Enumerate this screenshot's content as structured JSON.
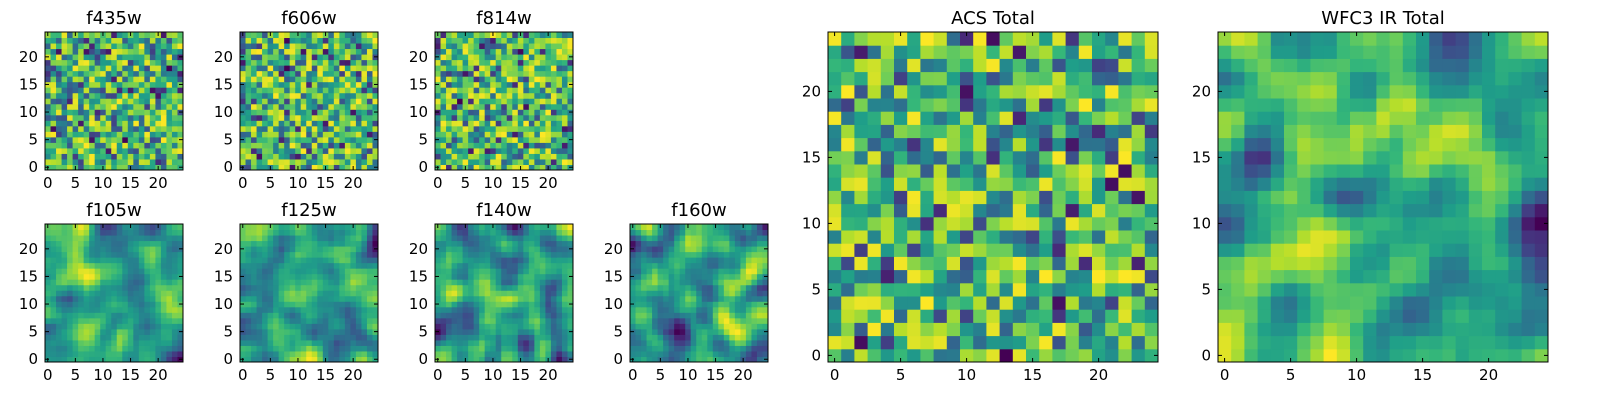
{
  "chart_data": [
    {
      "type": "heatmap",
      "title": "f435w",
      "grid_size": 25,
      "xticks": [
        "0",
        "5",
        "10",
        "15",
        "20"
      ],
      "yticks": [
        "0",
        "5",
        "10",
        "15",
        "20"
      ],
      "xlim": [
        -0.5,
        24.5
      ],
      "ylim": [
        -0.5,
        24.5
      ],
      "colormap": "viridis",
      "texture": "noise",
      "seed": 11
    },
    {
      "type": "heatmap",
      "title": "f606w",
      "grid_size": 25,
      "xticks": [
        "0",
        "5",
        "10",
        "15",
        "20"
      ],
      "yticks": [
        "0",
        "5",
        "10",
        "15",
        "20"
      ],
      "xlim": [
        -0.5,
        24.5
      ],
      "ylim": [
        -0.5,
        24.5
      ],
      "colormap": "viridis",
      "texture": "noise",
      "seed": 23
    },
    {
      "type": "heatmap",
      "title": "f814w",
      "grid_size": 25,
      "xticks": [
        "0",
        "5",
        "10",
        "15",
        "20"
      ],
      "yticks": [
        "0",
        "5",
        "10",
        "15",
        "20"
      ],
      "xlim": [
        -0.5,
        24.5
      ],
      "ylim": [
        -0.5,
        24.5
      ],
      "colormap": "viridis",
      "texture": "noise",
      "seed": 37
    },
    {
      "type": "heatmap",
      "title": "f105w",
      "grid_size": 25,
      "xticks": [
        "0",
        "5",
        "10",
        "15",
        "20"
      ],
      "yticks": [
        "0",
        "5",
        "10",
        "15",
        "20"
      ],
      "xlim": [
        -0.5,
        24.5
      ],
      "ylim": [
        -0.5,
        24.5
      ],
      "colormap": "viridis",
      "texture": "smooth",
      "seed": 41
    },
    {
      "type": "heatmap",
      "title": "f125w",
      "grid_size": 25,
      "xticks": [
        "0",
        "5",
        "10",
        "15",
        "20"
      ],
      "yticks": [
        "0",
        "5",
        "10",
        "15",
        "20"
      ],
      "xlim": [
        -0.5,
        24.5
      ],
      "ylim": [
        -0.5,
        24.5
      ],
      "colormap": "viridis",
      "texture": "smooth",
      "seed": 53
    },
    {
      "type": "heatmap",
      "title": "f140w",
      "grid_size": 25,
      "xticks": [
        "0",
        "5",
        "10",
        "15",
        "20"
      ],
      "yticks": [
        "0",
        "5",
        "10",
        "15",
        "20"
      ],
      "xlim": [
        -0.5,
        24.5
      ],
      "ylim": [
        -0.5,
        24.5
      ],
      "colormap": "viridis",
      "texture": "smooth",
      "seed": 67
    },
    {
      "type": "heatmap",
      "title": "f160w",
      "grid_size": 25,
      "xticks": [
        "0",
        "5",
        "10",
        "15",
        "20"
      ],
      "yticks": [
        "0",
        "5",
        "10",
        "15",
        "20"
      ],
      "xlim": [
        -0.5,
        24.5
      ],
      "ylim": [
        -0.5,
        24.5
      ],
      "colormap": "viridis",
      "texture": "smooth",
      "seed": 79
    },
    {
      "type": "heatmap",
      "title": "ACS Total",
      "grid_size": 25,
      "xticks": [
        "0",
        "5",
        "10",
        "15",
        "20"
      ],
      "yticks": [
        "0",
        "5",
        "10",
        "15",
        "20"
      ],
      "xlim": [
        -0.5,
        24.5
      ],
      "ylim": [
        -0.5,
        24.5
      ],
      "colormap": "viridis",
      "texture": "noise",
      "seed": 97
    },
    {
      "type": "heatmap",
      "title": "WFC3 IR Total",
      "grid_size": 25,
      "xticks": [
        "0",
        "5",
        "10",
        "15",
        "20"
      ],
      "yticks": [
        "0",
        "5",
        "10",
        "15",
        "20"
      ],
      "xlim": [
        -0.5,
        24.5
      ],
      "ylim": [
        -0.5,
        24.5
      ],
      "colormap": "viridis",
      "texture": "smooth",
      "seed": 113
    }
  ]
}
